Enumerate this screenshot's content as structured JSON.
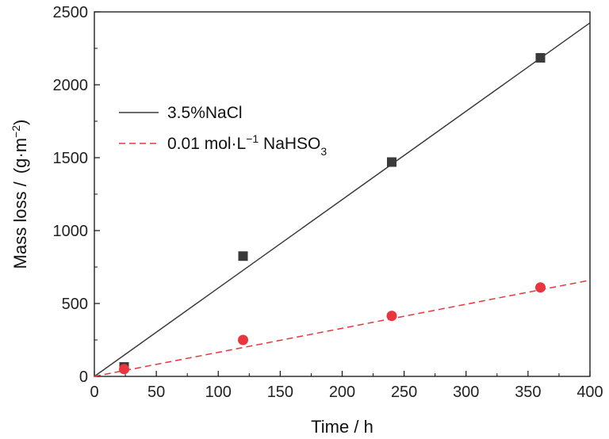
{
  "chart_data": {
    "type": "scatter",
    "title": "",
    "xlabel": "Time / h",
    "ylabel_main": "Mass loss / ",
    "ylabel_unit": {
      "open": "(g·m",
      "sup": "−2",
      "close": ")"
    },
    "xlim": [
      0,
      400
    ],
    "ylim": [
      0,
      2500
    ],
    "xticks": [
      0,
      50,
      100,
      150,
      200,
      250,
      300,
      350,
      400
    ],
    "yticks": [
      0,
      500,
      1000,
      1500,
      2000,
      2500
    ],
    "grid": false,
    "legend_position": "upper-left",
    "series": [
      {
        "name": "3.5%NaCl",
        "name_parts": {
          "text": "3.5%NaCl"
        },
        "marker": "square",
        "color": "#3a3a3a",
        "line_style": "solid",
        "x": [
          24,
          120,
          240,
          360
        ],
        "y": [
          65,
          825,
          1470,
          2185
        ],
        "fit_line": {
          "x": [
            0,
            400
          ],
          "y": [
            0,
            2425
          ]
        }
      },
      {
        "name": "0.01 mol·L−1 NaHSO3",
        "name_parts": {
          "a": "0.01 mol·L",
          "sup": "−1",
          "b": " NaHSO",
          "sub": "3"
        },
        "marker": "circle",
        "color": "#e8363e",
        "line_style": "dashed",
        "x": [
          24,
          120,
          240,
          360
        ],
        "y": [
          50,
          250,
          415,
          610
        ],
        "fit_line": {
          "x": [
            0,
            400
          ],
          "y": [
            0,
            660
          ]
        }
      }
    ]
  }
}
